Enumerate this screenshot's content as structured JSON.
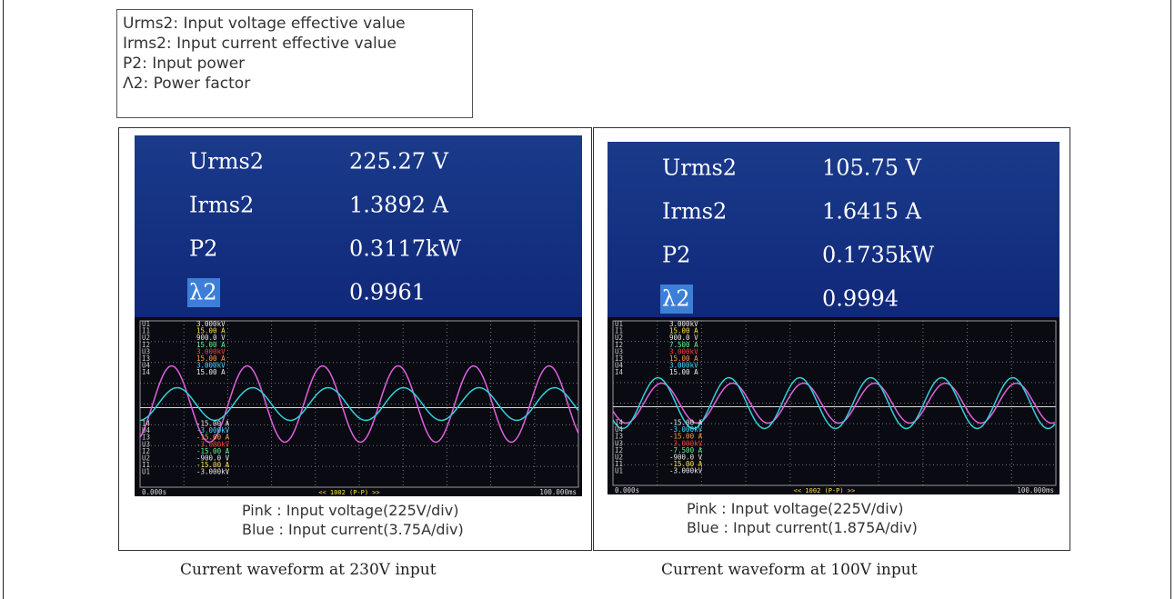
{
  "legend": [
    "Urms2: Input voltage effective value",
    "Irms2: Input current effective value",
    "P2: Input power",
    "Λ2: Power factor"
  ],
  "panels": [
    {
      "readings": [
        {
          "label": "Urms2",
          "value": "225.27 V"
        },
        {
          "label": "Irms2",
          "value": "1.3892 A"
        },
        {
          "label": "P2",
          "value": "0.3117kW"
        },
        {
          "label": "λ2",
          "value": "0.9961"
        }
      ],
      "channels_top": [
        [
          "U1",
          "3.000kV"
        ],
        [
          "I1",
          "15.00 A"
        ],
        [
          "U2",
          "900.0 V"
        ],
        [
          "I2",
          "15.00 A"
        ],
        [
          "U3",
          "3.000kV"
        ],
        [
          "I3",
          "15.00 A"
        ],
        [
          "U4",
          "3.000kV"
        ],
        [
          "I4",
          "15.00 A"
        ]
      ],
      "channels_bottom": [
        [
          "I4",
          "-15.00 A"
        ],
        [
          "U4",
          "-3.000kV"
        ],
        [
          "I3",
          "-15.00 A"
        ],
        [
          "U3",
          "-3.000kV"
        ],
        [
          "I2",
          "-15.00 A"
        ],
        [
          "U2",
          "-900.0 V"
        ],
        [
          "I1",
          "-15.00 A"
        ],
        [
          "U1",
          "-3.000kV"
        ]
      ],
      "time_start": "0.000s",
      "zoom": "<< 1002 (P-P) >>",
      "time_end": "100.000ms",
      "notes": [
        "Pink : Input voltage(225V/div)",
        "Blue : Input current(3.75A/div)"
      ],
      "caption": "Current waveform at 230V input"
    },
    {
      "readings": [
        {
          "label": "Urms2",
          "value": "105.75 V"
        },
        {
          "label": "Irms2",
          "value": "1.6415 A"
        },
        {
          "label": "P2",
          "value": "0.1735kW"
        },
        {
          "label": "λ2",
          "value": "0.9994"
        }
      ],
      "channels_top": [
        [
          "U1",
          "3.000kV"
        ],
        [
          "I1",
          "15.00 A"
        ],
        [
          "U2",
          "900.0 V"
        ],
        [
          "I2",
          "7.500 A"
        ],
        [
          "U3",
          "3.000kV"
        ],
        [
          "I3",
          "15.00 A"
        ],
        [
          "U4",
          "3.000kV"
        ],
        [
          "I4",
          "15.00 A"
        ]
      ],
      "channels_bottom": [
        [
          "I4",
          "-15.00 A"
        ],
        [
          "U4",
          "-3.000kV"
        ],
        [
          "I3",
          "-15.00 A"
        ],
        [
          "U3",
          "-3.000kV"
        ],
        [
          "I2",
          "-7.500 A"
        ],
        [
          "U2",
          "-900.0 V"
        ],
        [
          "I1",
          "-15.00 A"
        ],
        [
          "U1",
          "-3.000kV"
        ]
      ],
      "time_start": "0.000s",
      "zoom": "<< 1002 (P-P) >>",
      "time_end": "100.000ms",
      "notes": [
        "Pink : Input voltage(225V/div)",
        "Blue : Input current(1.875A/div)"
      ],
      "caption": "Current waveform at 100V input"
    }
  ]
}
